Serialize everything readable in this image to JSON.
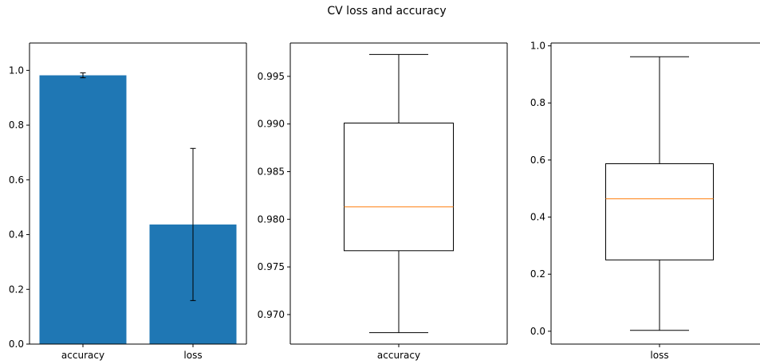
{
  "figure_title": "CV loss and accuracy",
  "colors": {
    "bar": "#1f77b4",
    "median": "#ff7f0e",
    "line": "#000000"
  },
  "chart_data": [
    {
      "type": "bar",
      "categories": [
        "accuracy",
        "loss"
      ],
      "values": [
        0.982,
        0.437
      ],
      "errors": [
        0.009,
        0.278
      ],
      "ylim": [
        0,
        1.1
      ],
      "yticks": [
        "0.0",
        "0.2",
        "0.4",
        "0.6",
        "0.8",
        "1.0"
      ],
      "grid": false
    },
    {
      "type": "boxplot",
      "categories": [
        "accuracy"
      ],
      "whisker_low": 0.9681,
      "q1": 0.9767,
      "median": 0.9813,
      "q3": 0.9901,
      "whisker_high": 0.9973,
      "ylim": [
        0.9669,
        0.9985
      ],
      "yticks": [
        "0.970",
        "0.975",
        "0.980",
        "0.985",
        "0.990",
        "0.995"
      ],
      "grid": false
    },
    {
      "type": "boxplot",
      "categories": [
        "loss"
      ],
      "whisker_low": 0.003,
      "q1": 0.25,
      "median": 0.464,
      "q3": 0.587,
      "whisker_high": 0.962,
      "ylim": [
        -0.045,
        1.01
      ],
      "yticks": [
        "0.0",
        "0.2",
        "0.4",
        "0.6",
        "0.8",
        "1.0"
      ],
      "grid": false
    }
  ]
}
